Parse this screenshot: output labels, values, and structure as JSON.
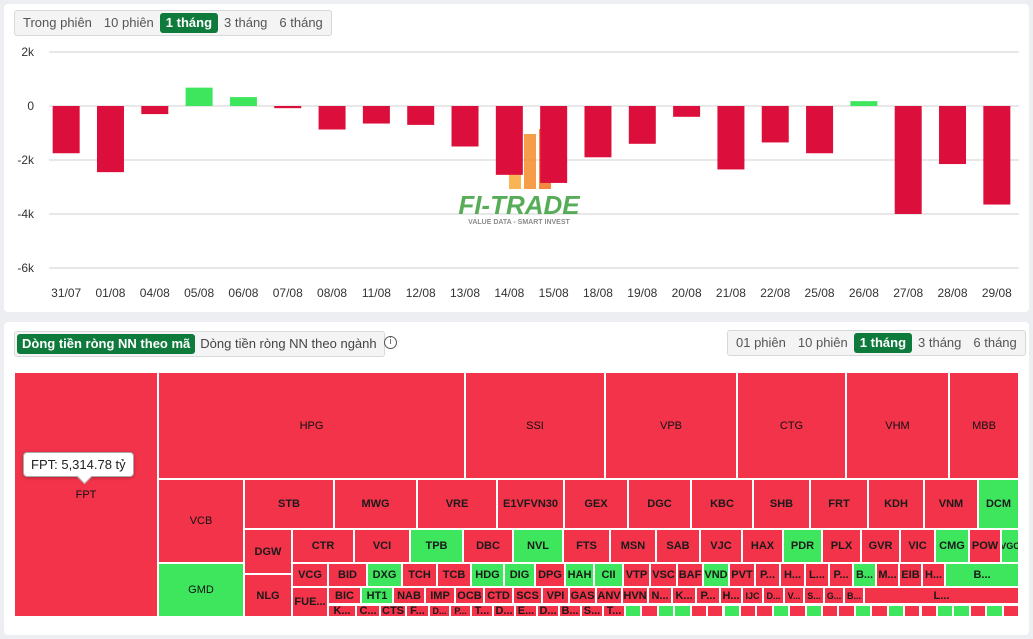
{
  "period_tabs": [
    "Trong phiên",
    "10 phiên",
    "1 tháng",
    "3 tháng",
    "6 tháng"
  ],
  "period_active": "1 tháng",
  "chart_data": {
    "type": "bar",
    "categories": [
      "31/07",
      "01/08",
      "04/08",
      "05/08",
      "06/08",
      "07/08",
      "08/08",
      "11/08",
      "12/08",
      "13/08",
      "14/08",
      "15/08",
      "18/08",
      "19/08",
      "20/08",
      "21/08",
      "22/08",
      "25/08",
      "26/08",
      "27/08",
      "28/08",
      "29/08"
    ],
    "values": [
      -1750,
      -2450,
      -300,
      680,
      330,
      -80,
      -870,
      -650,
      -700,
      -1500,
      -2550,
      -2850,
      -1900,
      -1400,
      -400,
      -2350,
      -1350,
      -1750,
      180,
      -4000,
      -2150,
      -3650
    ],
    "yticks": [
      "2k",
      "0",
      "-2k",
      "-4k",
      "-6k"
    ],
    "ylim": [
      -6000,
      2000
    ],
    "grid": true,
    "positive_color": "#3ee65e",
    "negative_color": "#dc0f3c"
  },
  "watermark": {
    "brand": "FI-TRADE",
    "tagline": "VALUE DATA - SMART INVEST"
  },
  "flow_tabs": [
    "Dòng tiền ròng NN theo mã",
    "Dòng tiền ròng NN theo ngành"
  ],
  "flow_active": "Dòng tiền ròng NN theo mã",
  "info_icon": "info-icon",
  "treemap_period_tabs": [
    "01 phiên",
    "10 phiên",
    "1 tháng",
    "3 tháng",
    "6 tháng"
  ],
  "treemap_period_active": "1 tháng",
  "tooltip": "FPT: 5,314.78 tỷ",
  "treemap_colors": {
    "outflow": "#f2334a",
    "inflow": "#3ee65e"
  },
  "treemap": {
    "big": [
      {
        "label": "FPT",
        "sign": "-"
      },
      {
        "label": "HPG",
        "sign": "-"
      },
      {
        "label": "SSI",
        "sign": "-"
      },
      {
        "label": "VPB",
        "sign": "-"
      },
      {
        "label": "CTG",
        "sign": "-"
      },
      {
        "label": "VHM",
        "sign": "-"
      },
      {
        "label": "MBB",
        "sign": "-"
      },
      {
        "label": "VCB",
        "sign": "-"
      },
      {
        "label": "GMD",
        "sign": "+"
      }
    ],
    "row1": [
      {
        "label": "STB",
        "sign": "-"
      },
      {
        "label": "MWG",
        "sign": "-"
      },
      {
        "label": "VRE",
        "sign": "-"
      },
      {
        "label": "E1VFVN30",
        "sign": "-"
      },
      {
        "label": "GEX",
        "sign": "-"
      },
      {
        "label": "DGC",
        "sign": "-"
      },
      {
        "label": "KBC",
        "sign": "-"
      },
      {
        "label": "SHB",
        "sign": "-"
      },
      {
        "label": "FRT",
        "sign": "-"
      },
      {
        "label": "KDH",
        "sign": "-"
      },
      {
        "label": "VNM",
        "sign": "-"
      },
      {
        "label": "DCM",
        "sign": "+"
      }
    ],
    "left_col": [
      {
        "label": "DGW",
        "sign": "-"
      },
      {
        "label": "NLG",
        "sign": "-"
      }
    ],
    "row2": [
      {
        "label": "CTR",
        "sign": "-"
      },
      {
        "label": "VCI",
        "sign": "-"
      },
      {
        "label": "TPB",
        "sign": "+"
      },
      {
        "label": "DBC",
        "sign": "-"
      },
      {
        "label": "NVL",
        "sign": "+"
      },
      {
        "label": "FTS",
        "sign": "-"
      },
      {
        "label": "MSN",
        "sign": "-"
      },
      {
        "label": "SAB",
        "sign": "-"
      },
      {
        "label": "VJC",
        "sign": "-"
      },
      {
        "label": "HAX",
        "sign": "-"
      },
      {
        "label": "PDR",
        "sign": "+"
      },
      {
        "label": "PLX",
        "sign": "-"
      },
      {
        "label": "GVR",
        "sign": "-"
      },
      {
        "label": "VIC",
        "sign": "-"
      },
      {
        "label": "CMG",
        "sign": "+"
      },
      {
        "label": "POW",
        "sign": "-"
      },
      {
        "label": "VGC",
        "sign": "+"
      }
    ],
    "row3": [
      {
        "label": "VCG",
        "sign": "-"
      },
      {
        "label": "BID",
        "sign": "-"
      },
      {
        "label": "DXG",
        "sign": "+"
      },
      {
        "label": "TCH",
        "sign": "-"
      },
      {
        "label": "TCB",
        "sign": "-"
      },
      {
        "label": "HDG",
        "sign": "+"
      },
      {
        "label": "DIG",
        "sign": "+"
      },
      {
        "label": "DPG",
        "sign": "-"
      },
      {
        "label": "HAH",
        "sign": "+"
      },
      {
        "label": "CII",
        "sign": "+"
      },
      {
        "label": "VTP",
        "sign": "-"
      },
      {
        "label": "VSC",
        "sign": "-"
      },
      {
        "label": "BAF",
        "sign": "-"
      },
      {
        "label": "VND",
        "sign": "+"
      },
      {
        "label": "PVT",
        "sign": "-"
      },
      {
        "label": "P...",
        "sign": "-"
      },
      {
        "label": "H...",
        "sign": "-"
      },
      {
        "label": "L...",
        "sign": "-"
      },
      {
        "label": "P...",
        "sign": "-"
      },
      {
        "label": "B...",
        "sign": "+"
      },
      {
        "label": "M...",
        "sign": "-"
      },
      {
        "label": "EIB",
        "sign": "-"
      },
      {
        "label": "H...",
        "sign": "-"
      },
      {
        "label": "B...",
        "sign": "+"
      }
    ],
    "row4": [
      {
        "label": "FUE...",
        "sign": "-"
      },
      {
        "label": "BIC",
        "sign": "-"
      },
      {
        "label": "HT1",
        "sign": "+"
      },
      {
        "label": "NAB",
        "sign": "-"
      },
      {
        "label": "IMP",
        "sign": "-"
      },
      {
        "label": "OCB",
        "sign": "-"
      },
      {
        "label": "CTD",
        "sign": "-"
      },
      {
        "label": "SCS",
        "sign": "-"
      },
      {
        "label": "VPI",
        "sign": "-"
      },
      {
        "label": "GAS",
        "sign": "-"
      },
      {
        "label": "ANV",
        "sign": "-"
      },
      {
        "label": "HVN",
        "sign": "-"
      },
      {
        "label": "N...",
        "sign": "-"
      },
      {
        "label": "K...",
        "sign": "-"
      },
      {
        "label": "P...",
        "sign": "-"
      },
      {
        "label": "H...",
        "sign": "-"
      },
      {
        "label": "IJC",
        "sign": "-"
      },
      {
        "label": "D...",
        "sign": "-"
      },
      {
        "label": "V...",
        "sign": "-"
      },
      {
        "label": "S...",
        "sign": "-"
      },
      {
        "label": "G...",
        "sign": "-"
      },
      {
        "label": "B...",
        "sign": "-"
      },
      {
        "label": "L...",
        "sign": "-"
      }
    ],
    "row5": [
      {
        "label": "K...",
        "sign": "-"
      },
      {
        "label": "C...",
        "sign": "-"
      },
      {
        "label": "CTS",
        "sign": "-"
      },
      {
        "label": "F...",
        "sign": "-"
      },
      {
        "label": "D...",
        "sign": "-"
      },
      {
        "label": "P...",
        "sign": "-"
      },
      {
        "label": "T...",
        "sign": "-"
      },
      {
        "label": "D...",
        "sign": "-"
      },
      {
        "label": "E...",
        "sign": "-"
      },
      {
        "label": "D...",
        "sign": "-"
      },
      {
        "label": "B...",
        "sign": "-"
      },
      {
        "label": "S...",
        "sign": "-"
      },
      {
        "label": "T...",
        "sign": "-"
      }
    ]
  }
}
